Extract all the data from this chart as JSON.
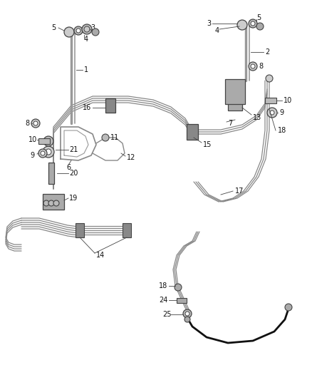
{
  "bg_color": "#ffffff",
  "line_color": "#444444",
  "label_color": "#111111",
  "tube_color": "#888888",
  "dark_color": "#222222"
}
